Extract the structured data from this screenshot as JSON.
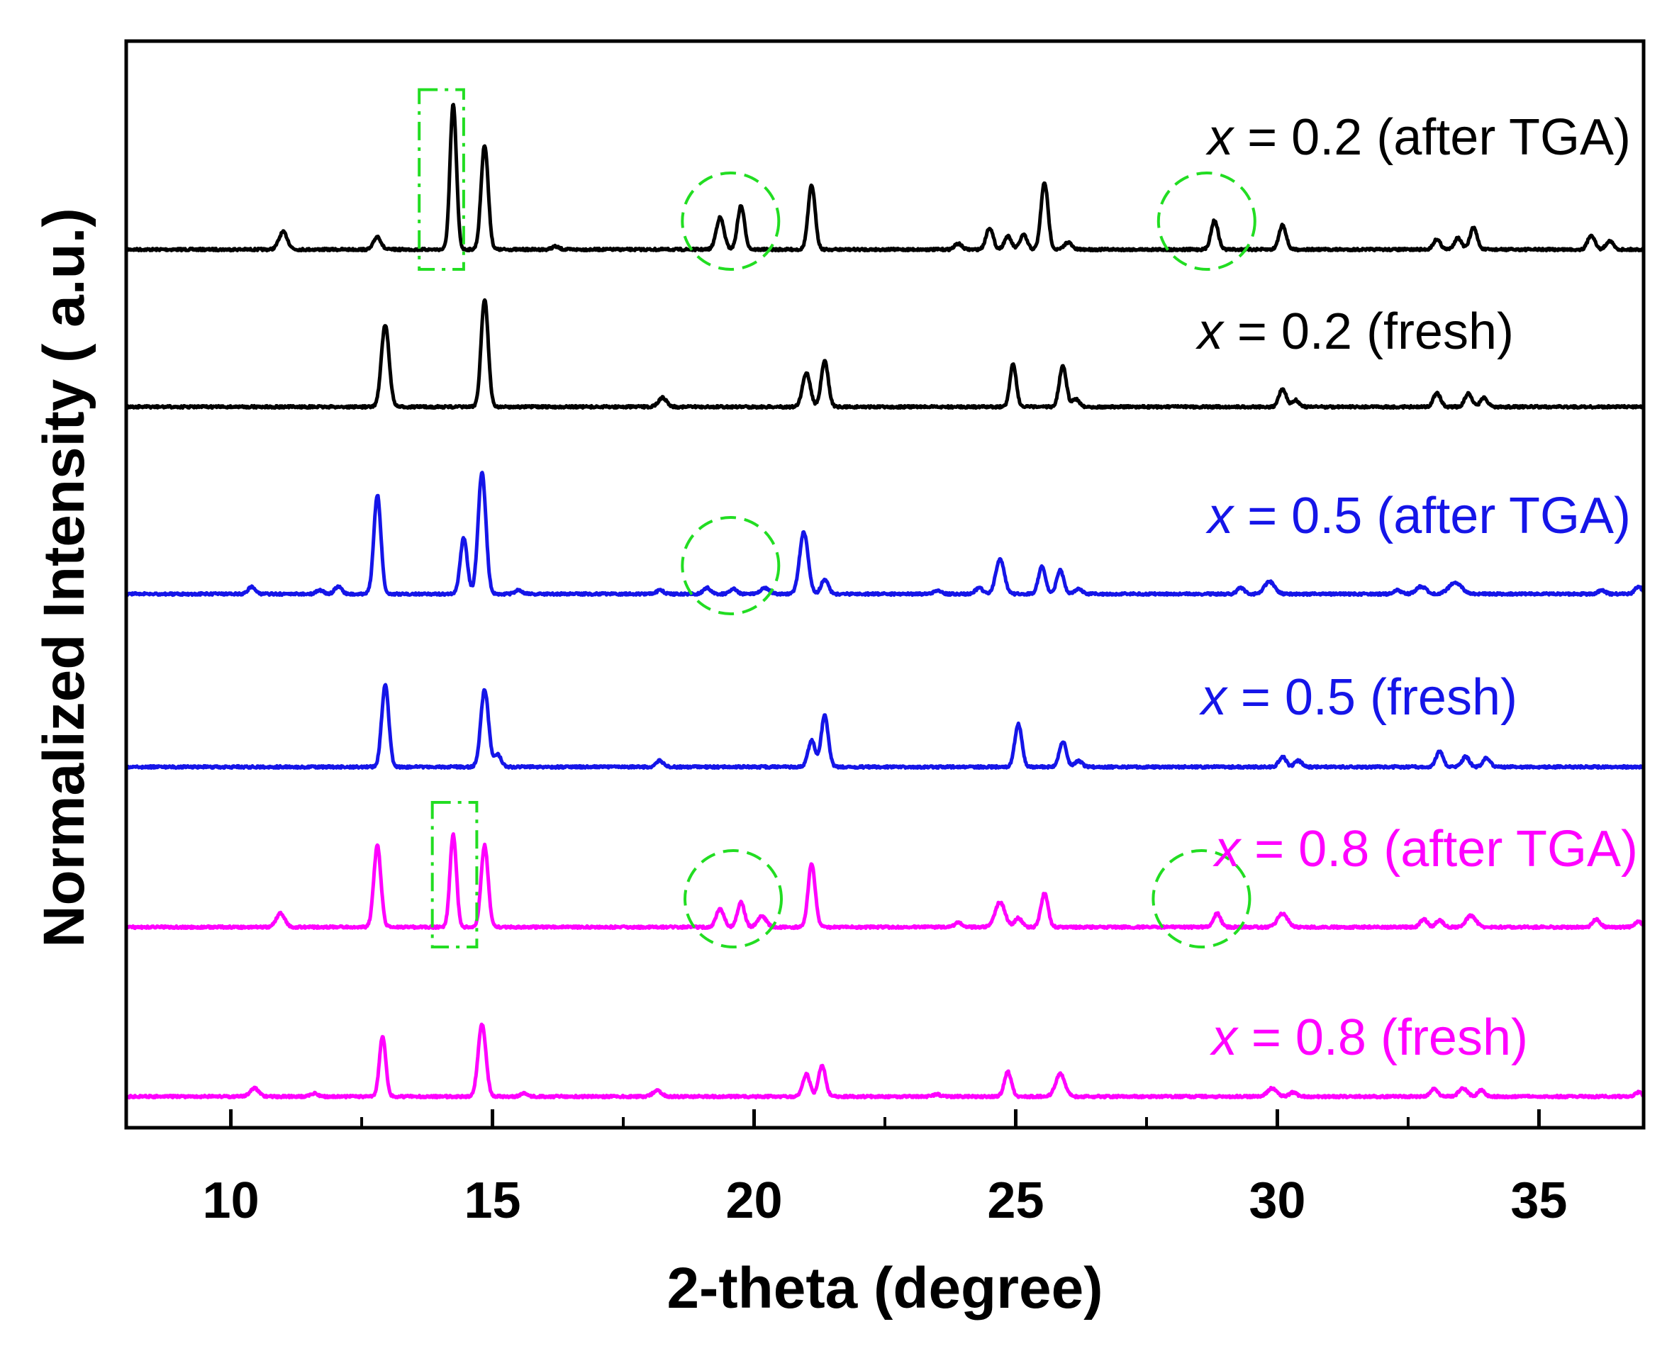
{
  "chart_data": {
    "type": "line",
    "title": "",
    "xlabel": "2-theta (degree)",
    "ylabel": "Normalized Intensity ( a.u.)",
    "xlim": [
      8,
      37
    ],
    "x_ticks": [
      10,
      15,
      20,
      25,
      30,
      35
    ],
    "x_minor_ticks": [
      12.5,
      17.5,
      22.5,
      27.5,
      32.5
    ],
    "grid": false,
    "legend": "inline labels, upper-right of each trace",
    "series": [
      {
        "name": "x = 0.2 (after TGA)",
        "symbol": "x",
        "label_rest": " = 0.2 (after TGA)",
        "color": "#000000",
        "baseline": 5,
        "scale": 1.0,
        "peaks": [
          [
            11.0,
            0.12,
            0.12
          ],
          [
            12.8,
            0.09,
            0.1
          ],
          [
            14.25,
            1.0,
            0.09
          ],
          [
            14.85,
            0.72,
            0.1
          ],
          [
            16.2,
            0.02,
            0.1
          ],
          [
            19.35,
            0.22,
            0.11
          ],
          [
            19.75,
            0.3,
            0.1
          ],
          [
            21.1,
            0.44,
            0.1
          ],
          [
            23.9,
            0.04,
            0.1
          ],
          [
            24.5,
            0.15,
            0.1
          ],
          [
            24.85,
            0.09,
            0.1
          ],
          [
            25.15,
            0.1,
            0.1
          ],
          [
            25.55,
            0.46,
            0.1
          ],
          [
            26.0,
            0.05,
            0.1
          ],
          [
            28.8,
            0.2,
            0.1
          ],
          [
            30.1,
            0.17,
            0.1
          ],
          [
            33.05,
            0.07,
            0.1
          ],
          [
            33.45,
            0.08,
            0.1
          ],
          [
            33.75,
            0.15,
            0.1
          ],
          [
            36.0,
            0.1,
            0.1
          ],
          [
            36.35,
            0.06,
            0.1
          ]
        ]
      },
      {
        "name": "x = 0.2 (fresh)",
        "symbol": "x",
        "label_rest": " = 0.2 (fresh)",
        "color": "#000000",
        "baseline": 4,
        "scale": 1.0,
        "peaks": [
          [
            12.95,
            0.72,
            0.11
          ],
          [
            14.85,
            0.95,
            0.1
          ],
          [
            18.25,
            0.08,
            0.12
          ],
          [
            21.0,
            0.3,
            0.11
          ],
          [
            21.35,
            0.4,
            0.1
          ],
          [
            24.95,
            0.38,
            0.09
          ],
          [
            25.9,
            0.36,
            0.1
          ],
          [
            26.15,
            0.07,
            0.1
          ],
          [
            30.1,
            0.16,
            0.1
          ],
          [
            30.35,
            0.06,
            0.1
          ],
          [
            33.05,
            0.12,
            0.1
          ],
          [
            33.65,
            0.12,
            0.1
          ],
          [
            33.95,
            0.08,
            0.1
          ]
        ]
      },
      {
        "name": "x = 0.5 (after TGA)",
        "symbol": "x",
        "label_rest": " = 0.5 (after TGA)",
        "color": "#1515e8",
        "baseline": 3,
        "scale": 1.0,
        "peaks": [
          [
            10.4,
            0.06,
            0.1
          ],
          [
            11.7,
            0.03,
            0.1
          ],
          [
            12.05,
            0.06,
            0.1
          ],
          [
            12.8,
            0.8,
            0.1
          ],
          [
            14.45,
            0.45,
            0.1
          ],
          [
            14.8,
            0.98,
            0.11
          ],
          [
            15.5,
            0.03,
            0.1
          ],
          [
            18.2,
            0.03,
            0.1
          ],
          [
            19.1,
            0.05,
            0.1
          ],
          [
            19.6,
            0.04,
            0.1
          ],
          [
            20.2,
            0.05,
            0.12
          ],
          [
            20.95,
            0.5,
            0.12
          ],
          [
            21.35,
            0.12,
            0.1
          ],
          [
            23.5,
            0.03,
            0.1
          ],
          [
            24.3,
            0.05,
            0.1
          ],
          [
            24.7,
            0.28,
            0.12
          ],
          [
            25.5,
            0.22,
            0.1
          ],
          [
            25.85,
            0.19,
            0.1
          ],
          [
            26.2,
            0.04,
            0.1
          ],
          [
            29.3,
            0.05,
            0.1
          ],
          [
            29.85,
            0.1,
            0.14
          ],
          [
            32.3,
            0.03,
            0.1
          ],
          [
            32.75,
            0.06,
            0.14
          ],
          [
            33.4,
            0.09,
            0.18
          ],
          [
            36.2,
            0.03,
            0.1
          ],
          [
            36.9,
            0.06,
            0.1
          ]
        ]
      },
      {
        "name": "x = 0.5 (fresh)",
        "symbol": "x",
        "label_rest": " = 0.5 (fresh)",
        "color": "#1515e8",
        "baseline": 2,
        "scale": 1.0,
        "peaks": [
          [
            12.95,
            0.8,
            0.1
          ],
          [
            14.85,
            0.75,
            0.11
          ],
          [
            15.1,
            0.12,
            0.1
          ],
          [
            18.2,
            0.06,
            0.1
          ],
          [
            21.1,
            0.26,
            0.1
          ],
          [
            21.35,
            0.5,
            0.1
          ],
          [
            25.05,
            0.42,
            0.1
          ],
          [
            25.9,
            0.25,
            0.1
          ],
          [
            26.2,
            0.06,
            0.1
          ],
          [
            30.1,
            0.1,
            0.1
          ],
          [
            30.4,
            0.06,
            0.1
          ],
          [
            33.1,
            0.15,
            0.1
          ],
          [
            33.6,
            0.1,
            0.1
          ],
          [
            34.0,
            0.09,
            0.1
          ]
        ]
      },
      {
        "name": "x = 0.8 (after TGA)",
        "symbol": "x",
        "label_rest": " = 0.8 (after TGA)",
        "color": "#ff00ff",
        "baseline": 1,
        "scale": 1.0,
        "peaks": [
          [
            10.95,
            0.12,
            0.12
          ],
          [
            12.8,
            0.72,
            0.1
          ],
          [
            14.25,
            0.82,
            0.09
          ],
          [
            14.85,
            0.72,
            0.1
          ],
          [
            19.35,
            0.16,
            0.11
          ],
          [
            19.75,
            0.22,
            0.1
          ],
          [
            20.15,
            0.1,
            0.12
          ],
          [
            21.1,
            0.56,
            0.1
          ],
          [
            23.9,
            0.04,
            0.1
          ],
          [
            24.7,
            0.22,
            0.14
          ],
          [
            25.05,
            0.08,
            0.1
          ],
          [
            25.55,
            0.3,
            0.1
          ],
          [
            28.85,
            0.12,
            0.1
          ],
          [
            30.1,
            0.12,
            0.14
          ],
          [
            32.8,
            0.07,
            0.1
          ],
          [
            33.1,
            0.06,
            0.1
          ],
          [
            33.7,
            0.1,
            0.14
          ],
          [
            36.1,
            0.07,
            0.1
          ],
          [
            36.9,
            0.05,
            0.1
          ]
        ]
      },
      {
        "name": "x = 0.8 (fresh)",
        "symbol": "x",
        "label_rest": " = 0.8 (fresh)",
        "color": "#ff00ff",
        "baseline": 0,
        "scale": 1.0,
        "peaks": [
          [
            10.45,
            0.08,
            0.12
          ],
          [
            11.6,
            0.03,
            0.1
          ],
          [
            12.9,
            0.58,
            0.09
          ],
          [
            14.8,
            0.7,
            0.11
          ],
          [
            15.6,
            0.03,
            0.1
          ],
          [
            18.15,
            0.06,
            0.12
          ],
          [
            21.0,
            0.22,
            0.1
          ],
          [
            21.3,
            0.3,
            0.1
          ],
          [
            23.5,
            0.02,
            0.1
          ],
          [
            24.85,
            0.24,
            0.1
          ],
          [
            25.85,
            0.22,
            0.13
          ],
          [
            29.9,
            0.08,
            0.13
          ],
          [
            30.3,
            0.04,
            0.1
          ],
          [
            33.0,
            0.08,
            0.1
          ],
          [
            33.55,
            0.08,
            0.12
          ],
          [
            33.9,
            0.06,
            0.1
          ],
          [
            36.9,
            0.04,
            0.1
          ]
        ]
      }
    ],
    "annotations": [
      {
        "shape": "dash-dot-rectangle",
        "color": "#22dd22",
        "x_range": [
          13.6,
          14.45
        ],
        "on_series": "x = 0.2 (after TGA)"
      },
      {
        "shape": "dashed-circle",
        "color": "#22dd22",
        "x_center": 19.55,
        "on_series": "x = 0.2 (after TGA)"
      },
      {
        "shape": "dashed-circle",
        "color": "#22dd22",
        "x_center": 28.65,
        "on_series": "x = 0.2 (after TGA)"
      },
      {
        "shape": "dashed-circle",
        "color": "#22dd22",
        "x_center": 19.55,
        "on_series": "x = 0.5 (after TGA)"
      },
      {
        "shape": "dash-dot-rectangle",
        "color": "#22dd22",
        "x_range": [
          13.85,
          14.7
        ],
        "on_series": "x = 0.8 (after TGA)"
      },
      {
        "shape": "dashed-circle",
        "color": "#22dd22",
        "x_center": 19.6,
        "on_series": "x = 0.8 (after TGA)"
      },
      {
        "shape": "dashed-circle",
        "color": "#22dd22",
        "x_center": 28.55,
        "on_series": "x = 0.8 (after TGA)"
      }
    ]
  }
}
